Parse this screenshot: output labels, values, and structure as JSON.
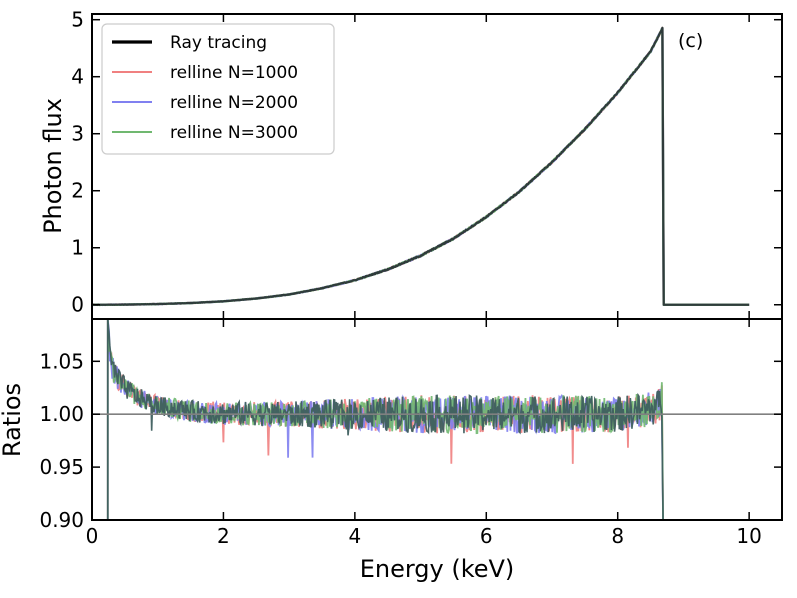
{
  "chart_data": [
    {
      "type": "line",
      "panel": "top",
      "panel_label": "(c)",
      "ylabel": "Photon flux",
      "xlim": [
        0,
        10.5
      ],
      "ylim": [
        -0.25,
        5.1
      ],
      "yticks": [
        0,
        1,
        2,
        3,
        4,
        5
      ],
      "ytick_labels": [
        "0",
        "1",
        "2",
        "3",
        "4",
        "5"
      ],
      "legend_position": "top-left",
      "legend": [
        {
          "label": "Ray tracing",
          "color": "#000000"
        },
        {
          "label": "relline N=1000",
          "color": "#f08080"
        },
        {
          "label": "relline N=2000",
          "color": "#8080f0"
        },
        {
          "label": "relline N=3000",
          "color": "#70b870"
        }
      ],
      "series": [
        {
          "name": "Ray tracing",
          "x": [
            0.0,
            0.2,
            0.5,
            1.0,
            1.5,
            2.0,
            2.5,
            3.0,
            3.5,
            4.0,
            4.5,
            5.0,
            5.5,
            6.0,
            6.5,
            7.0,
            7.5,
            8.0,
            8.5,
            8.68,
            8.7,
            9.0,
            10.0
          ],
          "values": [
            0.0,
            0.0,
            0.003,
            0.012,
            0.03,
            0.06,
            0.11,
            0.18,
            0.29,
            0.43,
            0.62,
            0.86,
            1.16,
            1.54,
            1.98,
            2.5,
            3.08,
            3.72,
            4.44,
            4.85,
            0.0,
            0.0,
            0.0
          ]
        }
      ]
    },
    {
      "type": "line",
      "panel": "bottom",
      "xlabel": "Energy (keV)",
      "ylabel": "Ratios",
      "xlim": [
        0,
        10.5
      ],
      "ylim": [
        0.9,
        1.09
      ],
      "reference_line": 1.0,
      "xticks": [
        0,
        2,
        4,
        6,
        8,
        10
      ],
      "xtick_labels": [
        "0",
        "2",
        "4",
        "6",
        "8",
        "10"
      ],
      "yticks": [
        0.9,
        0.95,
        1.0,
        1.05
      ],
      "ytick_labels": [
        "0.90",
        "0.95",
        "1.00",
        "1.05"
      ],
      "ratio_envelope": {
        "x": [
          0.25,
          0.3,
          0.4,
          0.5,
          0.7,
          1.0,
          1.5,
          2.0,
          3.0,
          4.0,
          5.0,
          6.0,
          7.0,
          8.0,
          8.6,
          8.68
        ],
        "center": [
          1.075,
          1.045,
          1.033,
          1.025,
          1.016,
          1.008,
          1.003,
          1.001,
          1.0,
          1.0,
          1.0,
          1.0,
          1.0,
          1.0,
          1.006,
          1.012
        ],
        "spread": [
          0.012,
          0.012,
          0.011,
          0.01,
          0.009,
          0.009,
          0.01,
          0.011,
          0.012,
          0.015,
          0.018,
          0.018,
          0.018,
          0.017,
          0.016,
          0.02
        ]
      },
      "series_names": [
        "relline N=1000",
        "relline N=2000",
        "relline N=3000",
        "Ray tracing"
      ]
    }
  ]
}
